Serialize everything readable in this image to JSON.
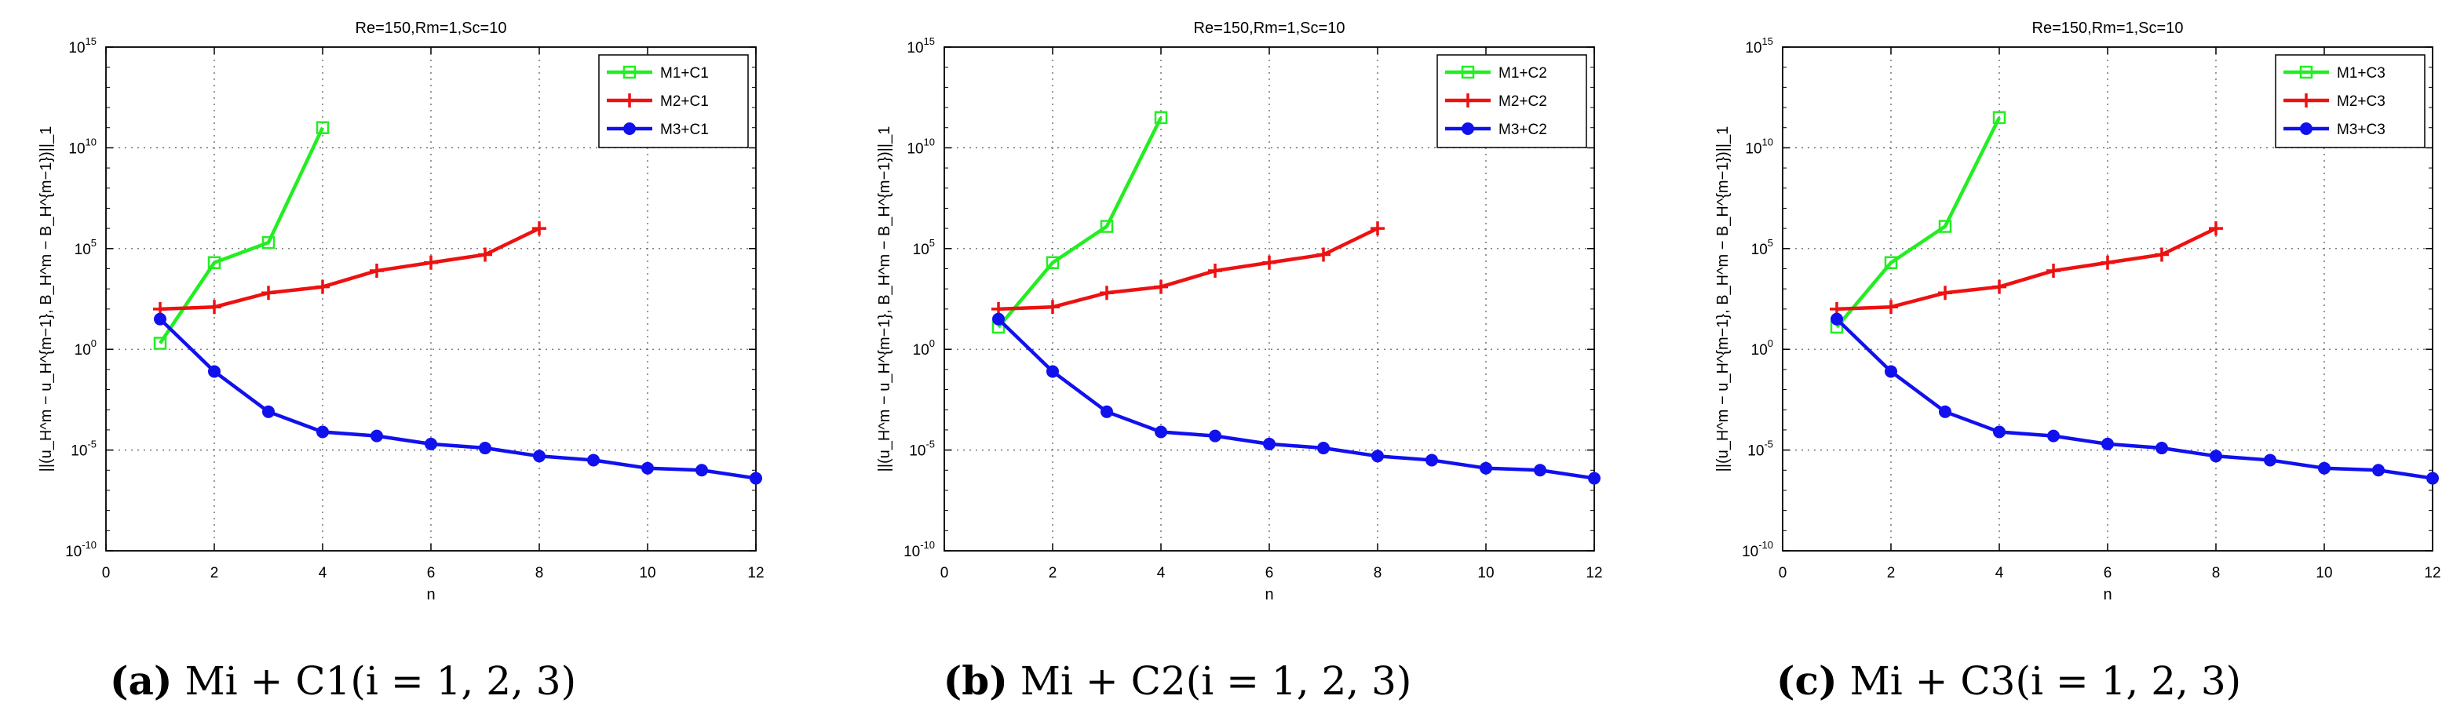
{
  "figure_captions": [
    {
      "label": "(a)",
      "text": "Mi + C1(i = 1, 2, 3)"
    },
    {
      "label": "(b)",
      "text": "Mi + C2(i = 1, 2, 3)"
    },
    {
      "label": "(c)",
      "text": "Mi + C3(i = 1, 2, 3)"
    }
  ],
  "colors": {
    "green": "#22ee22",
    "red": "#ee1111",
    "blue": "#1111ee"
  },
  "chart_data": [
    {
      "type": "line",
      "title": "Re=150,Rm=1,Sc=10",
      "xlabel": "n",
      "ylabel": "||(u_H^m − u_H^{m−1}, B_H^m − B_H^{m−1})||_1",
      "xlim": [
        0,
        12
      ],
      "xticks": [
        0,
        2,
        4,
        6,
        8,
        10,
        12
      ],
      "yscale": "log",
      "ylim_exp": [
        -10,
        15
      ],
      "yticks_exp": [
        -10,
        -5,
        0,
        5,
        10,
        15
      ],
      "grid": true,
      "legend_position": "top-right",
      "series": [
        {
          "name": "M1+C1",
          "color": "#22ee22",
          "marker": "square",
          "x": [
            1,
            2,
            3,
            4
          ],
          "log10_y": [
            0.3,
            4.3,
            5.3,
            11.0
          ]
        },
        {
          "name": "M2+C1",
          "color": "#ee1111",
          "marker": "plus",
          "x": [
            1,
            2,
            3,
            4,
            5,
            6,
            7,
            8
          ],
          "log10_y": [
            2.0,
            2.1,
            2.8,
            3.1,
            3.9,
            4.3,
            4.7,
            6.0
          ]
        },
        {
          "name": "M3+C1",
          "color": "#1111ee",
          "marker": "circle",
          "x": [
            1,
            2,
            3,
            4,
            5,
            6,
            7,
            8,
            9,
            10,
            11,
            12
          ],
          "log10_y": [
            1.5,
            -1.1,
            -3.1,
            -4.1,
            -4.3,
            -4.7,
            -4.9,
            -5.3,
            -5.5,
            -5.9,
            -6.0,
            -6.4
          ]
        }
      ]
    },
    {
      "type": "line",
      "title": "Re=150,Rm=1,Sc=10",
      "xlabel": "n",
      "ylabel": "||(u_H^m − u_H^{m−1}, B_H^m − B_H^{m−1})||_1",
      "xlim": [
        0,
        12
      ],
      "xticks": [
        0,
        2,
        4,
        6,
        8,
        10,
        12
      ],
      "yscale": "log",
      "ylim_exp": [
        -10,
        15
      ],
      "yticks_exp": [
        -10,
        -5,
        0,
        5,
        10,
        15
      ],
      "grid": true,
      "legend_position": "top-right",
      "series": [
        {
          "name": "M1+C2",
          "color": "#22ee22",
          "marker": "square",
          "x": [
            1,
            2,
            3,
            4
          ],
          "log10_y": [
            1.1,
            4.3,
            6.1,
            11.5
          ]
        },
        {
          "name": "M2+C2",
          "color": "#ee1111",
          "marker": "plus",
          "x": [
            1,
            2,
            3,
            4,
            5,
            6,
            7,
            8
          ],
          "log10_y": [
            2.0,
            2.1,
            2.8,
            3.1,
            3.9,
            4.3,
            4.7,
            6.0
          ]
        },
        {
          "name": "M3+C2",
          "color": "#1111ee",
          "marker": "circle",
          "x": [
            1,
            2,
            3,
            4,
            5,
            6,
            7,
            8,
            9,
            10,
            11,
            12
          ],
          "log10_y": [
            1.5,
            -1.1,
            -3.1,
            -4.1,
            -4.3,
            -4.7,
            -4.9,
            -5.3,
            -5.5,
            -5.9,
            -6.0,
            -6.4
          ]
        }
      ]
    },
    {
      "type": "line",
      "title": "Re=150,Rm=1,Sc=10",
      "xlabel": "n",
      "ylabel": "||(u_H^m − u_H^{m−1}, B_H^m − B_H^{m−1})||_1",
      "xlim": [
        0,
        12
      ],
      "xticks": [
        0,
        2,
        4,
        6,
        8,
        10,
        12
      ],
      "yscale": "log",
      "ylim_exp": [
        -10,
        15
      ],
      "yticks_exp": [
        -10,
        -5,
        0,
        5,
        10,
        15
      ],
      "grid": true,
      "legend_position": "top-right",
      "series": [
        {
          "name": "M1+C3",
          "color": "#22ee22",
          "marker": "square",
          "x": [
            1,
            2,
            3,
            4
          ],
          "log10_y": [
            1.1,
            4.3,
            6.1,
            11.5
          ]
        },
        {
          "name": "M2+C3",
          "color": "#ee1111",
          "marker": "plus",
          "x": [
            1,
            2,
            3,
            4,
            5,
            6,
            7,
            8
          ],
          "log10_y": [
            2.0,
            2.1,
            2.8,
            3.1,
            3.9,
            4.3,
            4.7,
            6.0
          ]
        },
        {
          "name": "M3+C3",
          "color": "#1111ee",
          "marker": "circle",
          "x": [
            1,
            2,
            3,
            4,
            5,
            6,
            7,
            8,
            9,
            10,
            11,
            12
          ],
          "log10_y": [
            1.5,
            -1.1,
            -3.1,
            -4.1,
            -4.3,
            -4.7,
            -4.9,
            -5.3,
            -5.5,
            -5.9,
            -6.0,
            -6.4
          ]
        }
      ]
    }
  ]
}
